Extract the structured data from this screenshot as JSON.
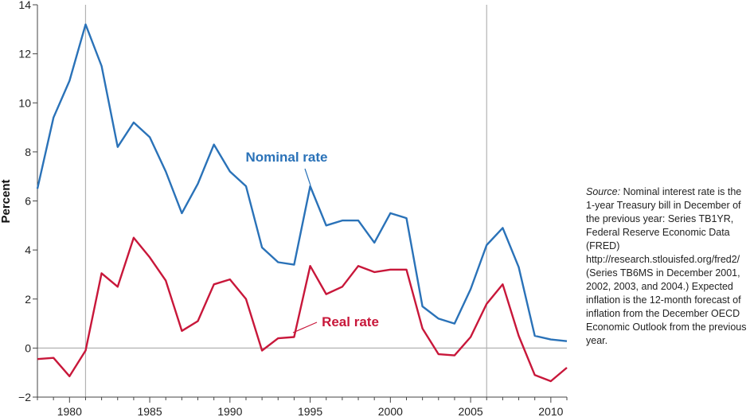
{
  "chart_data": {
    "type": "line",
    "ylabel": "Percent",
    "xlabel": "",
    "title": "",
    "xlim": [
      1978,
      2011
    ],
    "ylim": [
      -2,
      14
    ],
    "y_ticks": [
      -2,
      0,
      2,
      4,
      6,
      8,
      10,
      12,
      14
    ],
    "x_ticks": [
      1980,
      1985,
      1990,
      1995,
      2000,
      2005,
      2010
    ],
    "reference_lines_x": [
      1981,
      2006
    ],
    "x": [
      1978,
      1979,
      1980,
      1981,
      1982,
      1983,
      1984,
      1985,
      1986,
      1987,
      1988,
      1989,
      1990,
      1991,
      1992,
      1993,
      1994,
      1995,
      1996,
      1997,
      1998,
      1999,
      2000,
      2001,
      2002,
      2003,
      2004,
      2005,
      2006,
      2007,
      2008,
      2009,
      2010,
      2011
    ],
    "series": [
      {
        "name": "Nominal rate",
        "color": "#2a72b8",
        "values": [
          6.5,
          9.4,
          10.9,
          13.2,
          11.5,
          8.2,
          9.2,
          8.6,
          7.2,
          5.5,
          6.7,
          8.3,
          7.2,
          6.6,
          4.1,
          3.5,
          3.4,
          6.6,
          5.0,
          5.2,
          5.2,
          4.3,
          5.5,
          5.3,
          1.7,
          1.2,
          1.0,
          2.4,
          4.2,
          4.9,
          3.3,
          0.5,
          0.35,
          0.28
        ]
      },
      {
        "name": "Real rate",
        "color": "#c8173a",
        "values": [
          -0.45,
          -0.4,
          -1.15,
          -0.1,
          3.05,
          2.5,
          4.5,
          3.7,
          2.75,
          0.7,
          1.1,
          2.6,
          2.8,
          2.0,
          -0.1,
          0.4,
          0.45,
          3.35,
          2.2,
          2.5,
          3.35,
          3.1,
          3.2,
          3.2,
          0.8,
          -0.25,
          -0.3,
          0.45,
          1.8,
          2.6,
          0.5,
          -1.1,
          -1.35,
          -0.8
        ]
      }
    ]
  },
  "note": {
    "source_label": "Source:",
    "text": "Nominal interest rate is the 1-year Treasury bill in December of the previous year: Series TB1YR, Federal Reserve Economic Data (FRED) http://research.stlouisfed.org/fred2/ (Series TB6MS in December 2001, 2002, 2003, and 2004.) Expected inflation is the 12-month forecast of inflation from the December OECD Economic Outlook from the previous year."
  }
}
